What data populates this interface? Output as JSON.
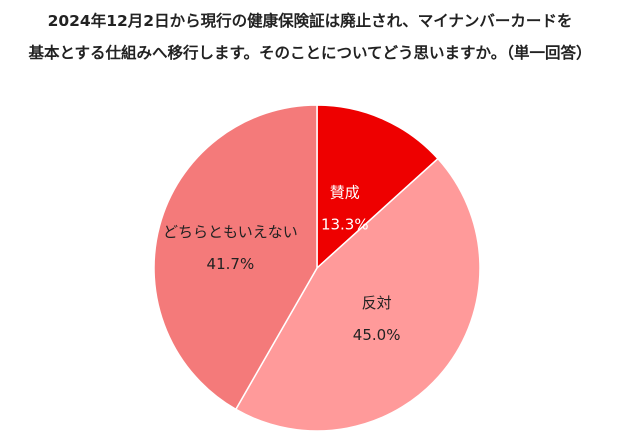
{
  "chart_data": {
    "type": "pie",
    "title_lines": [
      "2024年12月2日から現行の健康保険証は廃止され、マイナンバーカードを",
      "基本とする仕組みへ移行します。そのことについてどう思いますか。（単一回答）"
    ],
    "slices": [
      {
        "label": "賛成",
        "value": 13.3,
        "value_label": "13.3%",
        "color": "#ee0000",
        "text_color": "#ffffff"
      },
      {
        "label": "反対",
        "value": 45.0,
        "value_label": "45.0%",
        "color": "#ff9a9a",
        "text_color": "#222222"
      },
      {
        "label": "どちらともいえない",
        "value": 41.7,
        "value_label": "41.7%",
        "color": "#f47a7a",
        "text_color": "#222222"
      }
    ],
    "start_angle": "12 o'clock",
    "direction": "clockwise",
    "legend": "none"
  }
}
